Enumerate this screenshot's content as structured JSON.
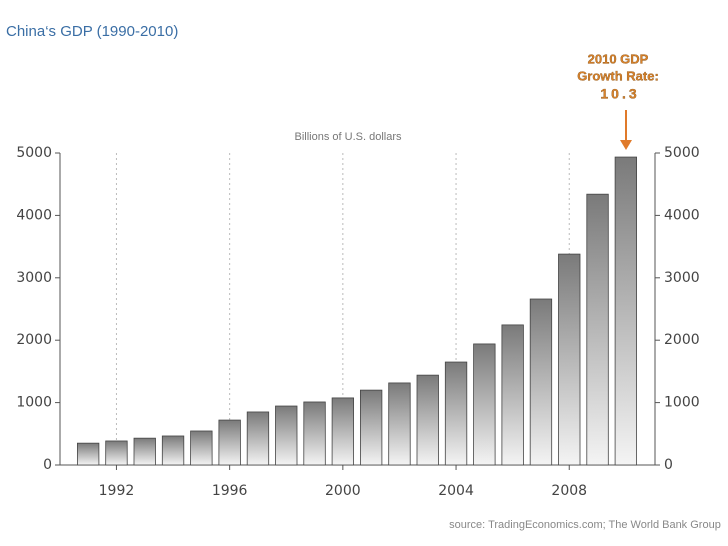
{
  "chart_data": {
    "type": "bar",
    "title": "China‘s GDP (1990-2010)",
    "subtitle": "Billions of U.S. dollars",
    "source": "source: TradingEconomics.com; The World Bank Group",
    "annotation": {
      "lines": [
        "2010 GDP",
        "Growth Rate:"
      ],
      "value": 10.3
    },
    "categories": [
      null,
      "1992",
      null,
      null,
      null,
      "1996",
      null,
      null,
      null,
      "2000",
      null,
      null,
      null,
      "2004",
      null,
      null,
      null,
      "2008",
      null,
      null
    ],
    "values": [
      350,
      385,
      430,
      465,
      545,
      720,
      850,
      945,
      1010,
      1075,
      1200,
      1315,
      1440,
      1650,
      1940,
      2245,
      2660,
      3380,
      4340,
      4935
    ],
    "color": "#7a7a7a",
    "ylim": [
      0,
      5000
    ],
    "yticks": [
      0,
      1000,
      2000,
      3000,
      4000,
      5000
    ],
    "y2lim": [
      0,
      5000
    ],
    "y2ticks": [
      0,
      1000,
      2000,
      3000,
      4000,
      5000
    ],
    "grid": "x"
  }
}
